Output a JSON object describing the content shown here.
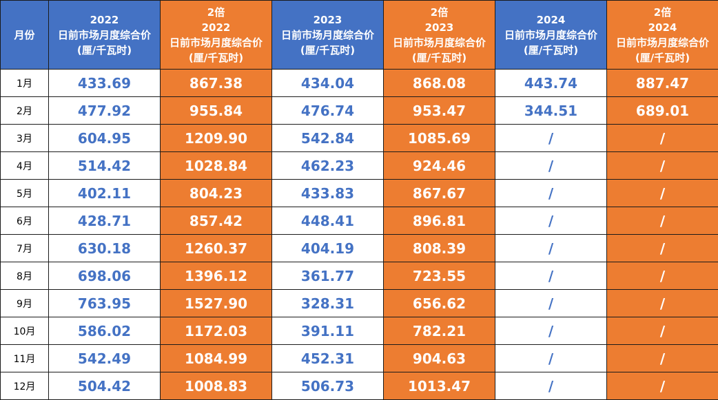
{
  "headers": {
    "month": "月份",
    "c1": {
      "l1": "2022",
      "l2": "日前市场月度综合价",
      "l3": "(厘/千瓦时)"
    },
    "c2": {
      "l0": "2倍",
      "l1": "2022",
      "l2": "日前市场月度综合价",
      "l3": "(厘/千瓦时)"
    },
    "c3": {
      "l1": "2023",
      "l2": "日前市场月度综合价",
      "l3": "(厘/千瓦时)"
    },
    "c4": {
      "l0": "2倍",
      "l1": "2023",
      "l2": "日前市场月度综合价",
      "l3": "(厘/千瓦时)"
    },
    "c5": {
      "l1": "2024",
      "l2": "日前市场月度综合价",
      "l3": "(厘/千瓦时)"
    },
    "c6": {
      "l0": "2倍",
      "l1": "2024",
      "l2": "日前市场月度综合价",
      "l3": "(厘/千瓦时)"
    }
  },
  "rows": [
    {
      "month": "1月",
      "v2022": "433.69",
      "d2022": "867.38",
      "v2023": "434.04",
      "d2023": "868.08",
      "v2024": "443.74",
      "d2024": "887.47"
    },
    {
      "month": "2月",
      "v2022": "477.92",
      "d2022": "955.84",
      "v2023": "476.74",
      "d2023": "953.47",
      "v2024": "344.51",
      "d2024": "689.01"
    },
    {
      "month": "3月",
      "v2022": "604.95",
      "d2022": "1209.90",
      "v2023": "542.84",
      "d2023": "1085.69",
      "v2024": "/",
      "d2024": "/"
    },
    {
      "month": "4月",
      "v2022": "514.42",
      "d2022": "1028.84",
      "v2023": "462.23",
      "d2023": "924.46",
      "v2024": "/",
      "d2024": "/"
    },
    {
      "month": "5月",
      "v2022": "402.11",
      "d2022": "804.23",
      "v2023": "433.83",
      "d2023": "867.67",
      "v2024": "/",
      "d2024": "/"
    },
    {
      "month": "6月",
      "v2022": "428.71",
      "d2022": "857.42",
      "v2023": "448.41",
      "d2023": "896.81",
      "v2024": "/",
      "d2024": "/"
    },
    {
      "month": "7月",
      "v2022": "630.18",
      "d2022": "1260.37",
      "v2023": "404.19",
      "d2023": "808.39",
      "v2024": "/",
      "d2024": "/"
    },
    {
      "month": "8月",
      "v2022": "698.06",
      "d2022": "1396.12",
      "v2023": "361.77",
      "d2023": "723.55",
      "v2024": "/",
      "d2024": "/"
    },
    {
      "month": "9月",
      "v2022": "763.95",
      "d2022": "1527.90",
      "v2023": "328.31",
      "d2023": "656.62",
      "v2024": "/",
      "d2024": "/"
    },
    {
      "month": "10月",
      "v2022": "586.02",
      "d2022": "1172.03",
      "v2023": "391.11",
      "d2023": "782.21",
      "v2024": "/",
      "d2024": "/"
    },
    {
      "month": "11月",
      "v2022": "542.49",
      "d2022": "1084.99",
      "v2023": "452.31",
      "d2023": "904.63",
      "v2024": "/",
      "d2024": "/"
    },
    {
      "month": "12月",
      "v2022": "504.42",
      "d2022": "1008.83",
      "v2023": "506.73",
      "d2023": "1013.47",
      "v2024": "/",
      "d2024": "/"
    }
  ],
  "colors": {
    "header_blue": "#4472c4",
    "header_orange": "#ed7d31",
    "value_text_blue": "#4472c4",
    "value_text_white": "#ffffff"
  }
}
